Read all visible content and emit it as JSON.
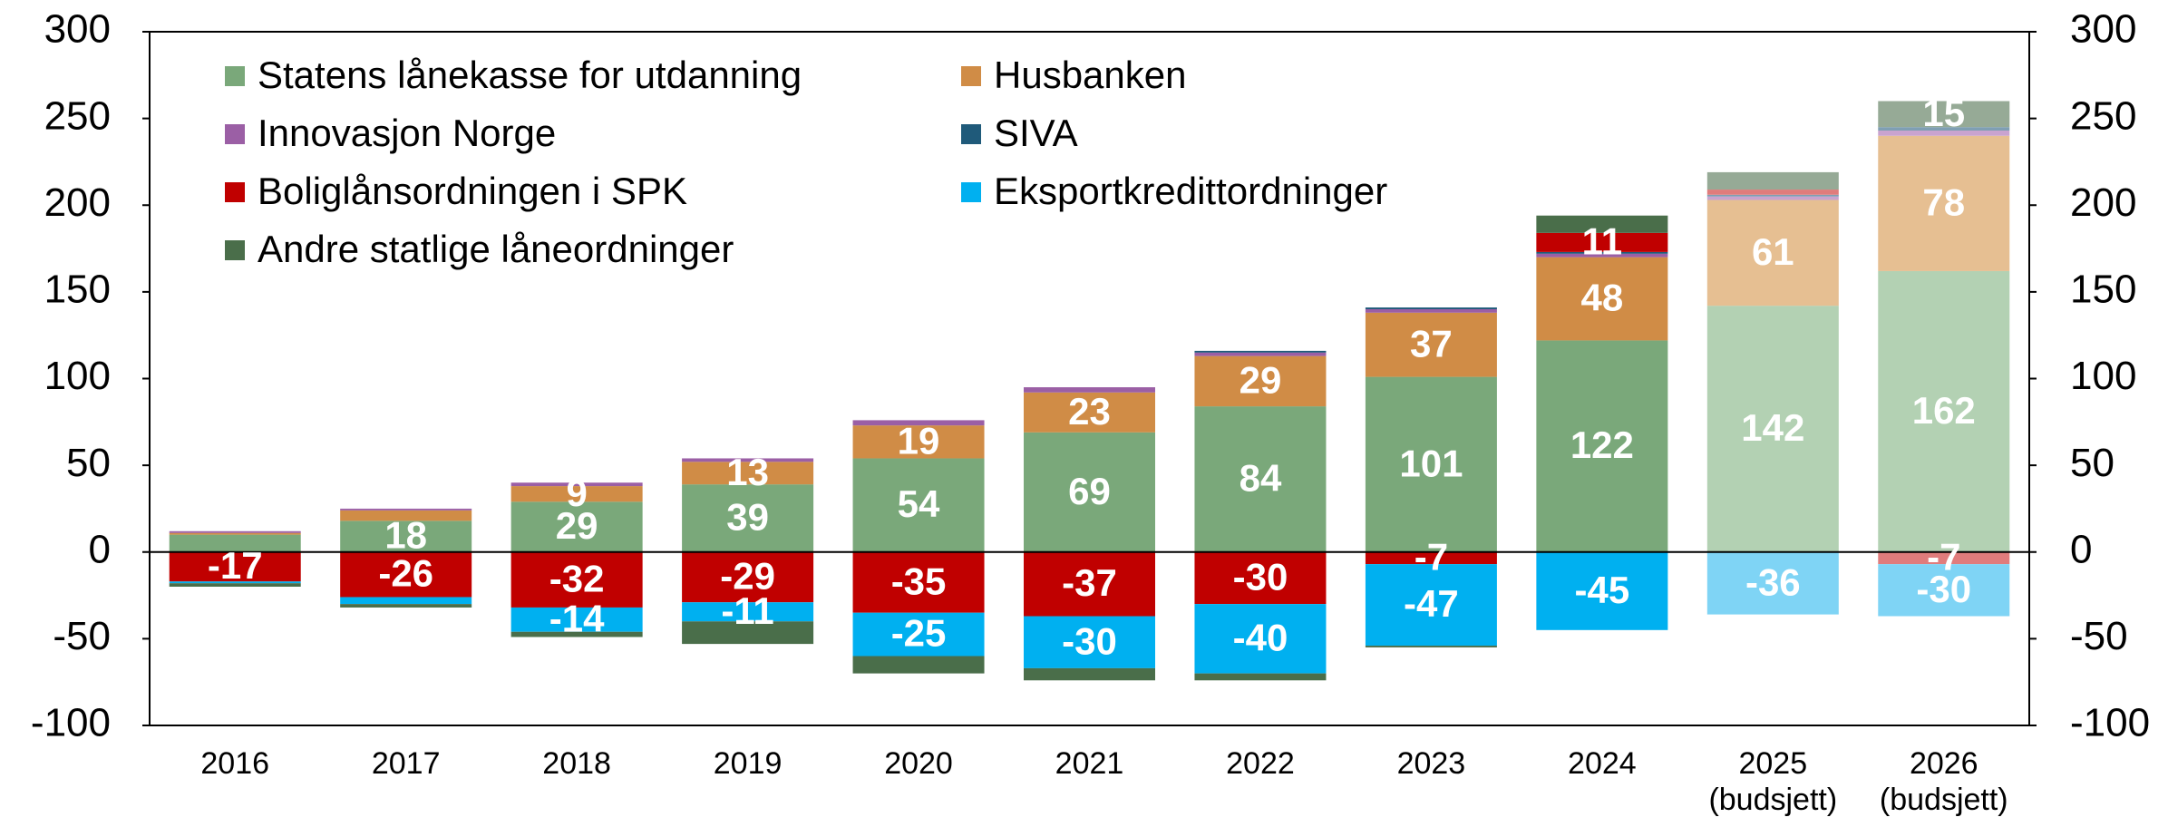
{
  "chart_data": {
    "type": "stacked_bar",
    "categories": [
      "2016",
      "2017",
      "2018",
      "2019",
      "2020",
      "2021",
      "2022",
      "2023",
      "2024",
      "2025\n(budsjett)",
      "2026\n(budsjett)"
    ],
    "budget_categories": [
      false,
      false,
      false,
      false,
      false,
      false,
      false,
      false,
      false,
      true,
      true
    ],
    "series": [
      {
        "name": "Statens lånekasse for utdanning",
        "color": "#7aa87a",
        "budget_color": "#b3d1b3",
        "values": [
          10,
          18,
          29,
          39,
          54,
          69,
          84,
          101,
          122,
          142,
          162
        ],
        "show_labels": [
          false,
          true,
          true,
          true,
          true,
          true,
          true,
          true,
          true,
          true,
          true
        ]
      },
      {
        "name": "Husbanken",
        "color": "#d08c46",
        "budget_color": "#e6bf92",
        "values": [
          1,
          6,
          9,
          13,
          19,
          23,
          29,
          37,
          48,
          61,
          78
        ],
        "show_labels": [
          false,
          false,
          true,
          true,
          true,
          true,
          true,
          true,
          true,
          true,
          true
        ]
      },
      {
        "name": "Innovasjon Norge",
        "color": "#9b5fa5",
        "budget_color": "#c9a3cf",
        "values": [
          1,
          1,
          2,
          2,
          3,
          3,
          2,
          2,
          2,
          2,
          3
        ],
        "show_labels": [
          false,
          false,
          false,
          false,
          false,
          false,
          false,
          false,
          false,
          false,
          false
        ]
      },
      {
        "name": "SIVA",
        "color": "#1f5a7a",
        "budget_color": "#7f9fb3",
        "values": [
          0,
          0,
          0,
          0,
          0,
          0,
          1,
          1,
          1,
          1,
          2
        ],
        "show_labels": [
          false,
          false,
          false,
          false,
          false,
          false,
          false,
          false,
          false,
          false,
          false
        ]
      },
      {
        "name": "Boliglånsordningen i SPK",
        "color": "#c00000",
        "budget_color": "#e07c7c",
        "values": [
          -17,
          -26,
          -32,
          -29,
          -35,
          -37,
          -30,
          -7,
          11,
          3,
          -7
        ],
        "show_labels": [
          true,
          true,
          true,
          true,
          true,
          true,
          true,
          true,
          true,
          false,
          true
        ]
      },
      {
        "name": "Eksportkredittordninger",
        "color": "#00b0f0",
        "budget_color": "#7fd4f5",
        "values": [
          -1,
          -4,
          -14,
          -11,
          -25,
          -30,
          -40,
          -47,
          -45,
          -36,
          -30
        ],
        "show_labels": [
          false,
          false,
          true,
          true,
          true,
          true,
          true,
          true,
          true,
          true,
          true
        ]
      },
      {
        "name": "Andre statlige låneordninger",
        "color": "#4a6e4a",
        "budget_color": "#96aa96",
        "values": [
          -2,
          -2,
          -3,
          -13,
          -10,
          -7,
          -4,
          -1,
          10,
          10,
          15
        ],
        "show_labels": [
          false,
          false,
          false,
          false,
          false,
          false,
          false,
          false,
          false,
          false,
          true
        ]
      }
    ],
    "ylim": [
      -100,
      300
    ],
    "yticks": [
      -100,
      -50,
      0,
      50,
      100,
      150,
      200,
      250,
      300
    ],
    "right_axis": true,
    "legend": "top-left"
  }
}
